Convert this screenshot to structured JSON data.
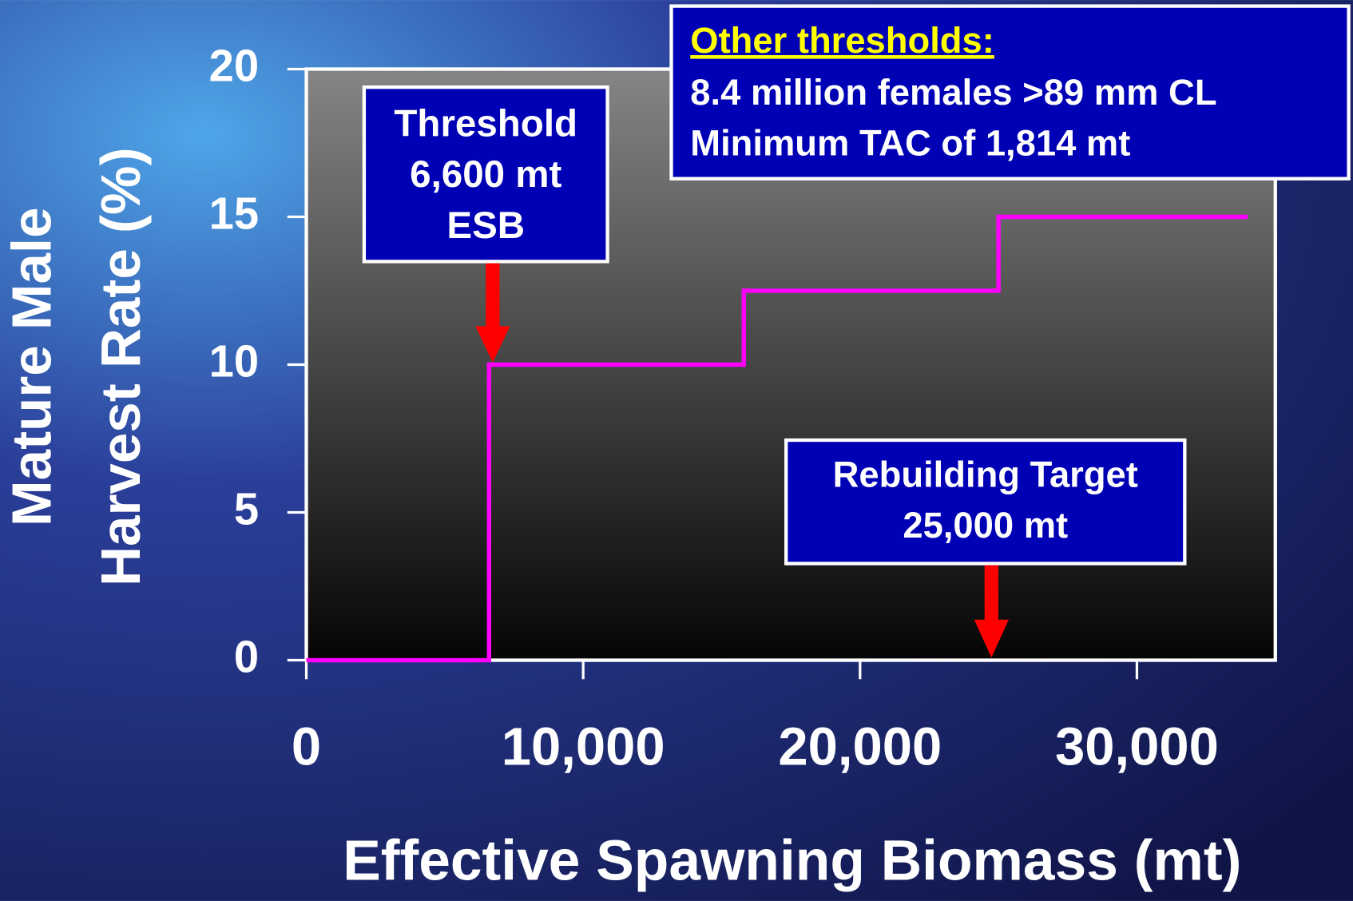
{
  "chart_data": {
    "type": "line",
    "x_label": "Effective Spawning Biomass (mt)",
    "y_label": [
      "Mature Male",
      "Harvest Rate (%)"
    ],
    "x": [
      0,
      6600,
      6600,
      15800,
      15800,
      25000,
      25000,
      34000
    ],
    "series": [
      {
        "color": "#ff00ff",
        "values": [
          0,
          0,
          10,
          10,
          12.5,
          12.5,
          15,
          15
        ]
      }
    ],
    "xlim": [
      0,
      35000
    ],
    "ylim": [
      0,
      20
    ],
    "xticks": [
      0,
      {
        "value": 10000,
        "label": "10,000"
      },
      {
        "value": 20000,
        "label": "20,000"
      },
      {
        "value": 30000,
        "label": "30,000"
      }
    ],
    "yticks": [
      0,
      5,
      10,
      15,
      20
    ],
    "annotations": [
      {
        "lines": [
          "Threshold",
          "6,600 mt",
          "ESB"
        ]
      },
      {
        "lines": [
          "Rebuilding Target",
          "25,000 mt"
        ]
      },
      {
        "title": "Other thresholds:",
        "lines": [
          "8.4 million females >89 mm CL",
          "Minimum TAC of 1,814 mt"
        ]
      }
    ]
  }
}
